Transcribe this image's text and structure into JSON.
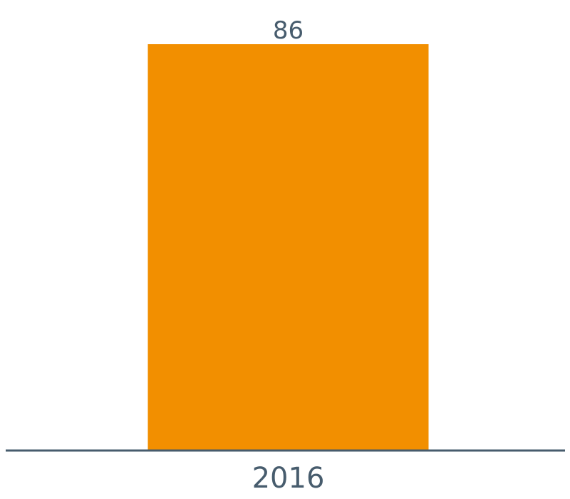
{
  "chart_data": {
    "type": "bar",
    "categories": [
      "2016"
    ],
    "values": [
      86
    ],
    "data_labels": [
      "86"
    ],
    "title": "",
    "xlabel": "",
    "ylabel": "",
    "ylim": [
      0,
      86
    ],
    "grid": false,
    "legend": "none",
    "colors": {
      "bar": "#f28f00",
      "axis": "#475c6d",
      "text": "#475c6d"
    }
  }
}
